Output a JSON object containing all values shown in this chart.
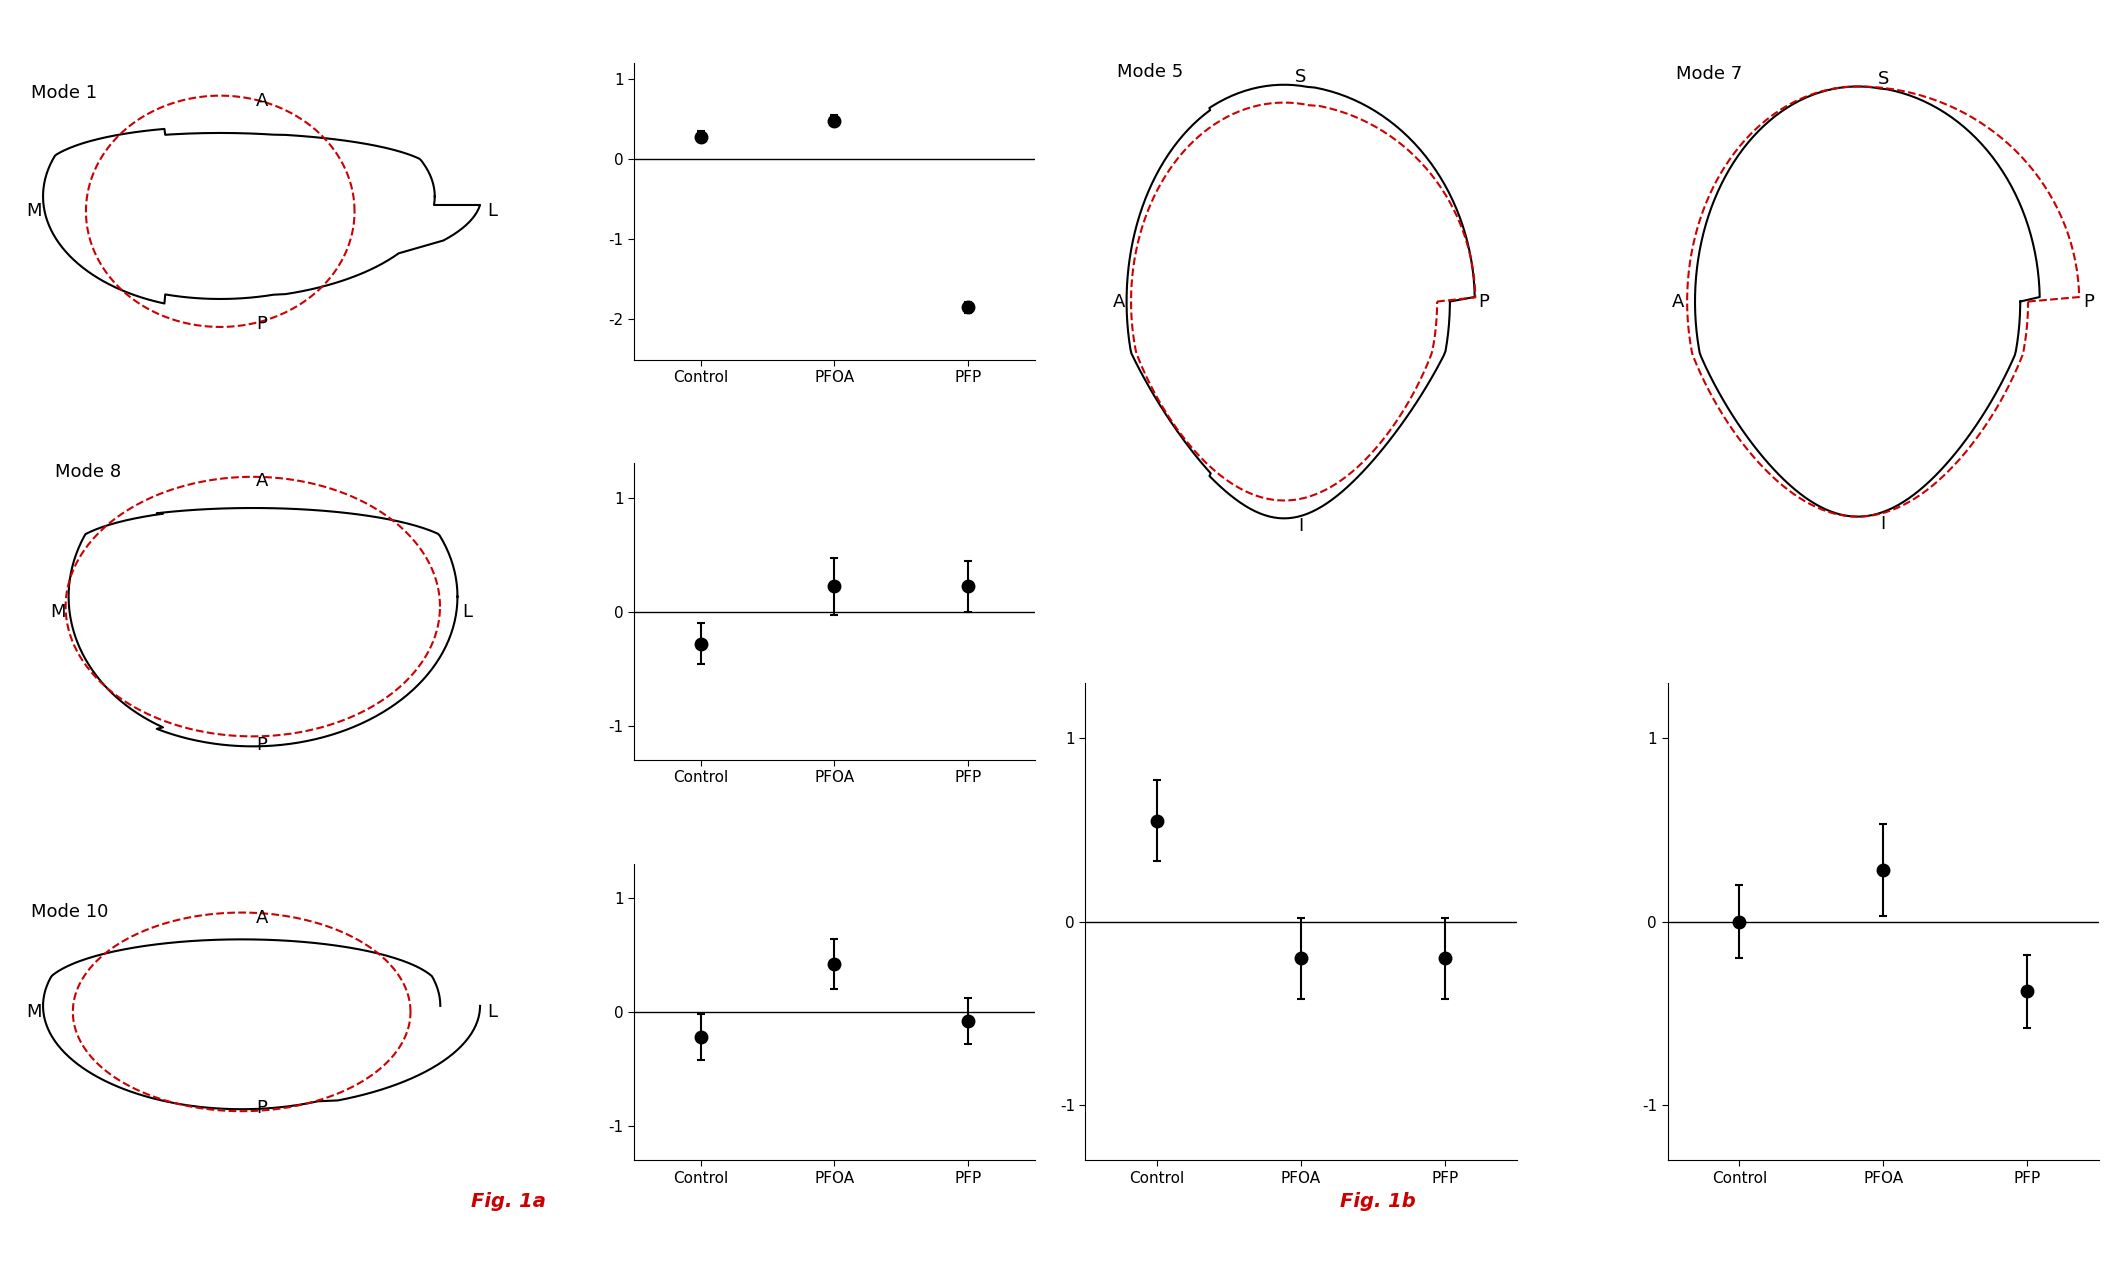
{
  "fig_label_a": "Fig. 1a",
  "fig_label_b": "Fig. 1b",
  "modes_left": [
    {
      "name": "Mode 1",
      "labels": {
        "top": "A",
        "left": "M",
        "right": "L",
        "bottom": "P"
      }
    },
    {
      "name": "Mode 8",
      "labels": {
        "top": "A",
        "left": "M",
        "right": "L",
        "bottom": "P"
      }
    },
    {
      "name": "Mode 10",
      "labels": {
        "top": "A",
        "left": "M",
        "right": "L",
        "bottom": "P"
      }
    }
  ],
  "modes_right": [
    {
      "name": "Mode 5",
      "labels": {
        "top": "S",
        "left": "A",
        "right": "P",
        "bottom": "I"
      }
    },
    {
      "name": "Mode 7",
      "labels": {
        "top": "S",
        "left": "A",
        "right": "P",
        "bottom": "I"
      }
    }
  ],
  "scatter_left": [
    {
      "groups": [
        "Control",
        "PFOA",
        "PFP"
      ],
      "means": [
        0.28,
        0.48,
        -1.85
      ],
      "errors": [
        0.07,
        0.07,
        0.07
      ],
      "ylim": [
        -2.5,
        1.2
      ],
      "yticks": [
        1,
        0,
        -1,
        -2
      ],
      "yticklabels": [
        "1",
        "0",
        "-1",
        "-2"
      ]
    },
    {
      "groups": [
        "Control",
        "PFOA",
        "PFP"
      ],
      "means": [
        -0.28,
        0.22,
        0.22
      ],
      "errors": [
        0.18,
        0.25,
        0.22
      ],
      "ylim": [
        -1.3,
        1.3
      ],
      "yticks": [
        1,
        0,
        -1
      ],
      "yticklabels": [
        "1",
        "0",
        "-1"
      ]
    },
    {
      "groups": [
        "Control",
        "PFOA",
        "PFP"
      ],
      "means": [
        -0.22,
        0.42,
        -0.08
      ],
      "errors": [
        0.2,
        0.22,
        0.2
      ],
      "ylim": [
        -1.3,
        1.3
      ],
      "yticks": [
        1,
        0,
        -1
      ],
      "yticklabels": [
        "1",
        "0",
        "-1"
      ]
    }
  ],
  "scatter_right": [
    {
      "groups": [
        "Control",
        "PFOA",
        "PFP"
      ],
      "means": [
        0.55,
        -0.2,
        -0.2
      ],
      "errors": [
        0.22,
        0.22,
        0.22
      ],
      "ylim": [
        -1.3,
        1.3
      ],
      "yticks": [
        1,
        0,
        -1
      ],
      "yticklabels": [
        "1",
        "0",
        "-1"
      ]
    },
    {
      "groups": [
        "Control",
        "PFOA",
        "PFP"
      ],
      "means": [
        0.0,
        0.28,
        -0.38
      ],
      "errors": [
        0.2,
        0.25,
        0.2
      ],
      "ylim": [
        -1.3,
        1.3
      ],
      "yticks": [
        1,
        0,
        -1
      ],
      "yticklabels": [
        "1",
        "0",
        "-1"
      ]
    }
  ],
  "black_color": "#1a1a1a",
  "red_color": "#cc0000",
  "fig_label_color": "#cc0000",
  "marker_size": 10,
  "linewidth": 1.5
}
